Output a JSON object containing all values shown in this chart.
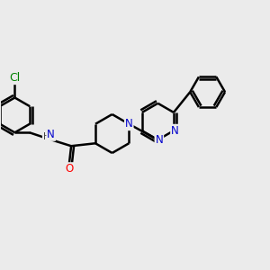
{
  "bg_color": "#ebebeb",
  "bond_color": "#000000",
  "bond_width": 1.8,
  "atom_colors": {
    "N": "#0000cc",
    "O": "#ff0000",
    "Cl": "#008000",
    "H": "#444444",
    "C": "#000000"
  },
  "font_size": 8.5,
  "fig_size": [
    3.0,
    3.0
  ],
  "dpi": 100
}
